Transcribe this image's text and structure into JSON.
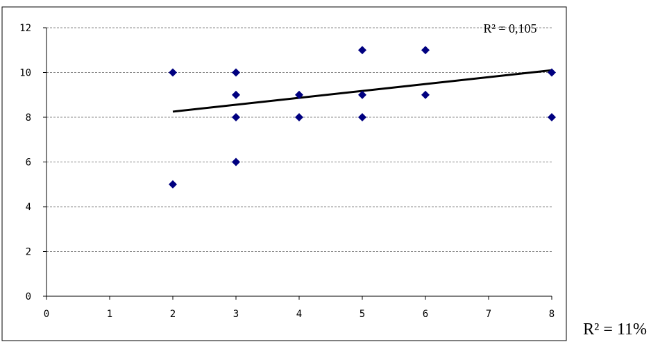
{
  "chart_data": {
    "type": "scatter",
    "title": "",
    "xlabel": "",
    "ylabel": "",
    "xlim": [
      0,
      8
    ],
    "ylim": [
      0,
      12
    ],
    "x_ticks": [
      "0",
      "1",
      "2",
      "3",
      "4",
      "5",
      "6",
      "7",
      "8"
    ],
    "y_ticks": [
      "0",
      "2",
      "4",
      "6",
      "8",
      "10",
      "12"
    ],
    "grid": "horizontal dashed",
    "marker_color": "#000080",
    "points": [
      {
        "x": 2,
        "y": 10
      },
      {
        "x": 2,
        "y": 5
      },
      {
        "x": 3,
        "y": 10
      },
      {
        "x": 3,
        "y": 9
      },
      {
        "x": 3,
        "y": 8
      },
      {
        "x": 3,
        "y": 6
      },
      {
        "x": 4,
        "y": 9
      },
      {
        "x": 4,
        "y": 8
      },
      {
        "x": 5,
        "y": 11
      },
      {
        "x": 5,
        "y": 9
      },
      {
        "x": 5,
        "y": 8
      },
      {
        "x": 6,
        "y": 11
      },
      {
        "x": 6,
        "y": 9
      },
      {
        "x": 8,
        "y": 10
      },
      {
        "x": 8,
        "y": 8
      }
    ],
    "trendline": {
      "x": [
        2,
        8
      ],
      "y": [
        8.25,
        10.1
      ],
      "color": "#000000"
    },
    "annotation": "R² = 0,105"
  },
  "caption": "R² = 11%"
}
